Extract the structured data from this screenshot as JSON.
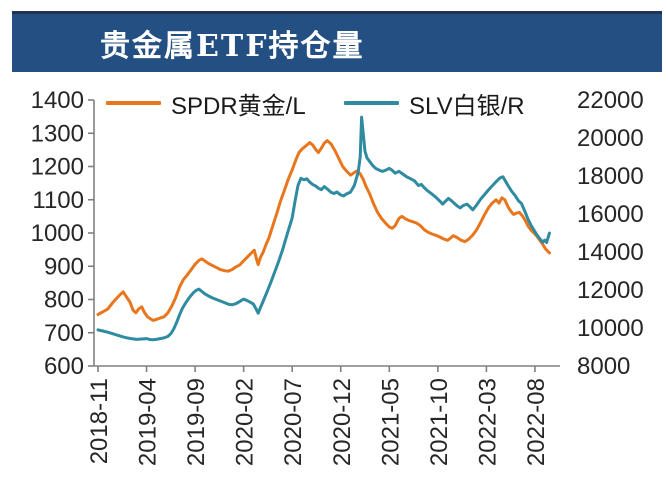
{
  "header": {
    "title": "贵金属ETF持仓量",
    "banner_color": "#234F82",
    "top_rule_color": "#1F3557"
  },
  "legend": [
    {
      "label": "SPDR黄金/L",
      "color": "#E8761D"
    },
    {
      "label": "SLV白银/R",
      "color": "#2E8BA0"
    }
  ],
  "chart_data": {
    "type": "line",
    "title": "贵金属ETF持仓量",
    "legend_position": "top",
    "grid": "off",
    "axis_color": "#808080",
    "tick_label_color": "#262626",
    "x_tick_labels": [
      "2018-11",
      "2019-04",
      "2019-09",
      "2020-02",
      "2020-07",
      "2020-12",
      "2021-05",
      "2021-10",
      "2022-03",
      "2022-08"
    ],
    "months_per_tick": 5,
    "x_range_months": [
      -0.4,
      47.4
    ],
    "left_axis": {
      "name": "SPDR黄金/L",
      "min": 600,
      "max": 1400,
      "ticks": [
        1400,
        1300,
        1200,
        1100,
        1000,
        900,
        800,
        700,
        600
      ]
    },
    "right_axis": {
      "name": "SLV白银/R",
      "min": 8000,
      "max": 22000,
      "ticks": [
        22000,
        20000,
        18000,
        16000,
        14000,
        12000,
        10000,
        8000
      ]
    },
    "series": [
      {
        "name": "SPDR黄金/L",
        "axis": "left",
        "color": "#E8761D",
        "points": [
          [
            0,
            755
          ],
          [
            0.5,
            763
          ],
          [
            1,
            771
          ],
          [
            1.5,
            790
          ],
          [
            2,
            806
          ],
          [
            2.3,
            815
          ],
          [
            2.6,
            823
          ],
          [
            3,
            805
          ],
          [
            3.3,
            792
          ],
          [
            3.6,
            768
          ],
          [
            3.9,
            760
          ],
          [
            4.2,
            772
          ],
          [
            4.5,
            778
          ],
          [
            4.8,
            760
          ],
          [
            5.1,
            748
          ],
          [
            5.4,
            742
          ],
          [
            5.7,
            737
          ],
          [
            6,
            740
          ],
          [
            6.4,
            744
          ],
          [
            6.8,
            748
          ],
          [
            7.2,
            760
          ],
          [
            7.6,
            780
          ],
          [
            8,
            806
          ],
          [
            8.4,
            838
          ],
          [
            8.8,
            860
          ],
          [
            9.2,
            874
          ],
          [
            9.6,
            890
          ],
          [
            10,
            906
          ],
          [
            10.4,
            918
          ],
          [
            10.7,
            922
          ],
          [
            11,
            916
          ],
          [
            11.4,
            908
          ],
          [
            11.8,
            902
          ],
          [
            12.2,
            896
          ],
          [
            12.6,
            890
          ],
          [
            13,
            887
          ],
          [
            13.4,
            885
          ],
          [
            13.8,
            890
          ],
          [
            14.2,
            898
          ],
          [
            14.6,
            904
          ],
          [
            15,
            916
          ],
          [
            15.4,
            928
          ],
          [
            15.8,
            940
          ],
          [
            16.1,
            948
          ],
          [
            16.35,
            918
          ],
          [
            16.5,
            905
          ],
          [
            16.7,
            925
          ],
          [
            17,
            942
          ],
          [
            17.3,
            965
          ],
          [
            17.6,
            985
          ],
          [
            18,
            1022
          ],
          [
            18.4,
            1058
          ],
          [
            18.8,
            1096
          ],
          [
            19.2,
            1128
          ],
          [
            19.6,
            1162
          ],
          [
            20,
            1190
          ],
          [
            20.4,
            1222
          ],
          [
            20.7,
            1242
          ],
          [
            21,
            1252
          ],
          [
            21.4,
            1262
          ],
          [
            21.8,
            1272
          ],
          [
            22.1,
            1265
          ],
          [
            22.4,
            1252
          ],
          [
            22.7,
            1242
          ],
          [
            23,
            1255
          ],
          [
            23.3,
            1270
          ],
          [
            23.6,
            1278
          ],
          [
            24,
            1268
          ],
          [
            24.4,
            1248
          ],
          [
            24.8,
            1224
          ],
          [
            25.2,
            1200
          ],
          [
            25.6,
            1186
          ],
          [
            26,
            1174
          ],
          [
            26.3,
            1180
          ],
          [
            26.6,
            1186
          ],
          [
            27,
            1178
          ],
          [
            27.3,
            1162
          ],
          [
            27.6,
            1140
          ],
          [
            28,
            1116
          ],
          [
            28.4,
            1086
          ],
          [
            28.8,
            1062
          ],
          [
            29.2,
            1044
          ],
          [
            29.6,
            1030
          ],
          [
            30,
            1018
          ],
          [
            30.3,
            1014
          ],
          [
            30.6,
            1022
          ],
          [
            31,
            1044
          ],
          [
            31.3,
            1050
          ],
          [
            31.6,
            1044
          ],
          [
            32,
            1038
          ],
          [
            32.4,
            1034
          ],
          [
            32.8,
            1030
          ],
          [
            33.2,
            1022
          ],
          [
            33.6,
            1010
          ],
          [
            34,
            1002
          ],
          [
            34.4,
            997
          ],
          [
            34.8,
            993
          ],
          [
            35.2,
            988
          ],
          [
            35.6,
            982
          ],
          [
            36,
            978
          ],
          [
            36.3,
            985
          ],
          [
            36.6,
            992
          ],
          [
            37,
            986
          ],
          [
            37.4,
            978
          ],
          [
            37.8,
            974
          ],
          [
            38.2,
            982
          ],
          [
            38.6,
            994
          ],
          [
            39,
            1010
          ],
          [
            39.4,
            1032
          ],
          [
            39.8,
            1055
          ],
          [
            40.2,
            1075
          ],
          [
            40.6,
            1090
          ],
          [
            41,
            1100
          ],
          [
            41.3,
            1090
          ],
          [
            41.6,
            1106
          ],
          [
            41.9,
            1100
          ],
          [
            42.2,
            1080
          ],
          [
            42.5,
            1066
          ],
          [
            42.8,
            1056
          ],
          [
            43.1,
            1060
          ],
          [
            43.4,
            1062
          ],
          [
            43.7,
            1052
          ],
          [
            44,
            1038
          ],
          [
            44.3,
            1020
          ],
          [
            44.6,
            1008
          ],
          [
            44.9,
            1000
          ],
          [
            45.2,
            990
          ],
          [
            45.5,
            978
          ],
          [
            45.8,
            966
          ],
          [
            46.1,
            952
          ],
          [
            46.35,
            944
          ],
          [
            46.5,
            940
          ]
        ]
      },
      {
        "name": "SLV白银/R",
        "axis": "right",
        "color": "#2E8BA0",
        "points": [
          [
            0,
            9900
          ],
          [
            0.5,
            9840
          ],
          [
            1,
            9780
          ],
          [
            1.5,
            9700
          ],
          [
            2,
            9620
          ],
          [
            2.5,
            9540
          ],
          [
            3,
            9480
          ],
          [
            3.5,
            9430
          ],
          [
            4,
            9400
          ],
          [
            4.5,
            9420
          ],
          [
            5,
            9440
          ],
          [
            5.3,
            9400
          ],
          [
            5.6,
            9380
          ],
          [
            6,
            9400
          ],
          [
            6.4,
            9440
          ],
          [
            6.8,
            9480
          ],
          [
            7.2,
            9560
          ],
          [
            7.5,
            9700
          ],
          [
            7.8,
            9950
          ],
          [
            8.1,
            10300
          ],
          [
            8.4,
            10700
          ],
          [
            8.7,
            11050
          ],
          [
            9,
            11300
          ],
          [
            9.4,
            11600
          ],
          [
            9.8,
            11850
          ],
          [
            10.1,
            11980
          ],
          [
            10.4,
            12050
          ],
          [
            10.7,
            11920
          ],
          [
            11,
            11800
          ],
          [
            11.4,
            11680
          ],
          [
            11.8,
            11580
          ],
          [
            12.2,
            11500
          ],
          [
            12.6,
            11420
          ],
          [
            13,
            11340
          ],
          [
            13.4,
            11260
          ],
          [
            13.8,
            11220
          ],
          [
            14.2,
            11280
          ],
          [
            14.6,
            11400
          ],
          [
            15,
            11520
          ],
          [
            15.3,
            11460
          ],
          [
            15.6,
            11380
          ],
          [
            16,
            11260
          ],
          [
            16.3,
            10980
          ],
          [
            16.5,
            10780
          ],
          [
            16.7,
            11050
          ],
          [
            17,
            11400
          ],
          [
            17.4,
            11900
          ],
          [
            17.8,
            12400
          ],
          [
            18.2,
            12950
          ],
          [
            18.6,
            13500
          ],
          [
            19,
            14100
          ],
          [
            19.4,
            14800
          ],
          [
            19.7,
            15300
          ],
          [
            20,
            15800
          ],
          [
            20.3,
            16700
          ],
          [
            20.6,
            17500
          ],
          [
            20.9,
            17880
          ],
          [
            21.2,
            17800
          ],
          [
            21.5,
            17850
          ],
          [
            21.8,
            17680
          ],
          [
            22.1,
            17560
          ],
          [
            22.4,
            17480
          ],
          [
            22.7,
            17360
          ],
          [
            23,
            17280
          ],
          [
            23.3,
            17440
          ],
          [
            23.6,
            17320
          ],
          [
            24,
            17140
          ],
          [
            24.3,
            17080
          ],
          [
            24.6,
            17160
          ],
          [
            25,
            17000
          ],
          [
            25.3,
            16950
          ],
          [
            25.6,
            17060
          ],
          [
            26,
            17150
          ],
          [
            26.4,
            17500
          ],
          [
            26.8,
            18200
          ],
          [
            27,
            19000
          ],
          [
            27.15,
            21100
          ],
          [
            27.3,
            20300
          ],
          [
            27.5,
            19300
          ],
          [
            27.7,
            18950
          ],
          [
            28,
            18750
          ],
          [
            28.3,
            18550
          ],
          [
            28.6,
            18400
          ],
          [
            29,
            18300
          ],
          [
            29.3,
            18240
          ],
          [
            29.6,
            18300
          ],
          [
            30,
            18400
          ],
          [
            30.3,
            18300
          ],
          [
            30.6,
            18150
          ],
          [
            31,
            18250
          ],
          [
            31.4,
            18100
          ],
          [
            31.8,
            17950
          ],
          [
            32.2,
            17850
          ],
          [
            32.6,
            17750
          ],
          [
            33,
            17500
          ],
          [
            33.3,
            17560
          ],
          [
            33.6,
            17380
          ],
          [
            34,
            17200
          ],
          [
            34.4,
            17050
          ],
          [
            34.8,
            16880
          ],
          [
            35.2,
            16680
          ],
          [
            35.5,
            16520
          ],
          [
            35.8,
            16680
          ],
          [
            36.1,
            16820
          ],
          [
            36.4,
            16700
          ],
          [
            36.7,
            16560
          ],
          [
            37,
            16420
          ],
          [
            37.3,
            16320
          ],
          [
            37.6,
            16440
          ],
          [
            38,
            16520
          ],
          [
            38.3,
            16380
          ],
          [
            38.6,
            16220
          ],
          [
            39,
            16480
          ],
          [
            39.4,
            16780
          ],
          [
            39.8,
            17020
          ],
          [
            40.2,
            17260
          ],
          [
            40.6,
            17480
          ],
          [
            41,
            17700
          ],
          [
            41.4,
            17900
          ],
          [
            41.7,
            17960
          ],
          [
            42,
            17700
          ],
          [
            42.3,
            17440
          ],
          [
            42.6,
            17200
          ],
          [
            43,
            16940
          ],
          [
            43.3,
            16700
          ],
          [
            43.6,
            16560
          ],
          [
            44,
            16100
          ],
          [
            44.3,
            15700
          ],
          [
            44.6,
            15400
          ],
          [
            44.9,
            15150
          ],
          [
            45.2,
            14900
          ],
          [
            45.5,
            14700
          ],
          [
            45.8,
            14520
          ],
          [
            46,
            14620
          ],
          [
            46.2,
            14500
          ],
          [
            46.5,
            15000
          ]
        ]
      }
    ]
  }
}
